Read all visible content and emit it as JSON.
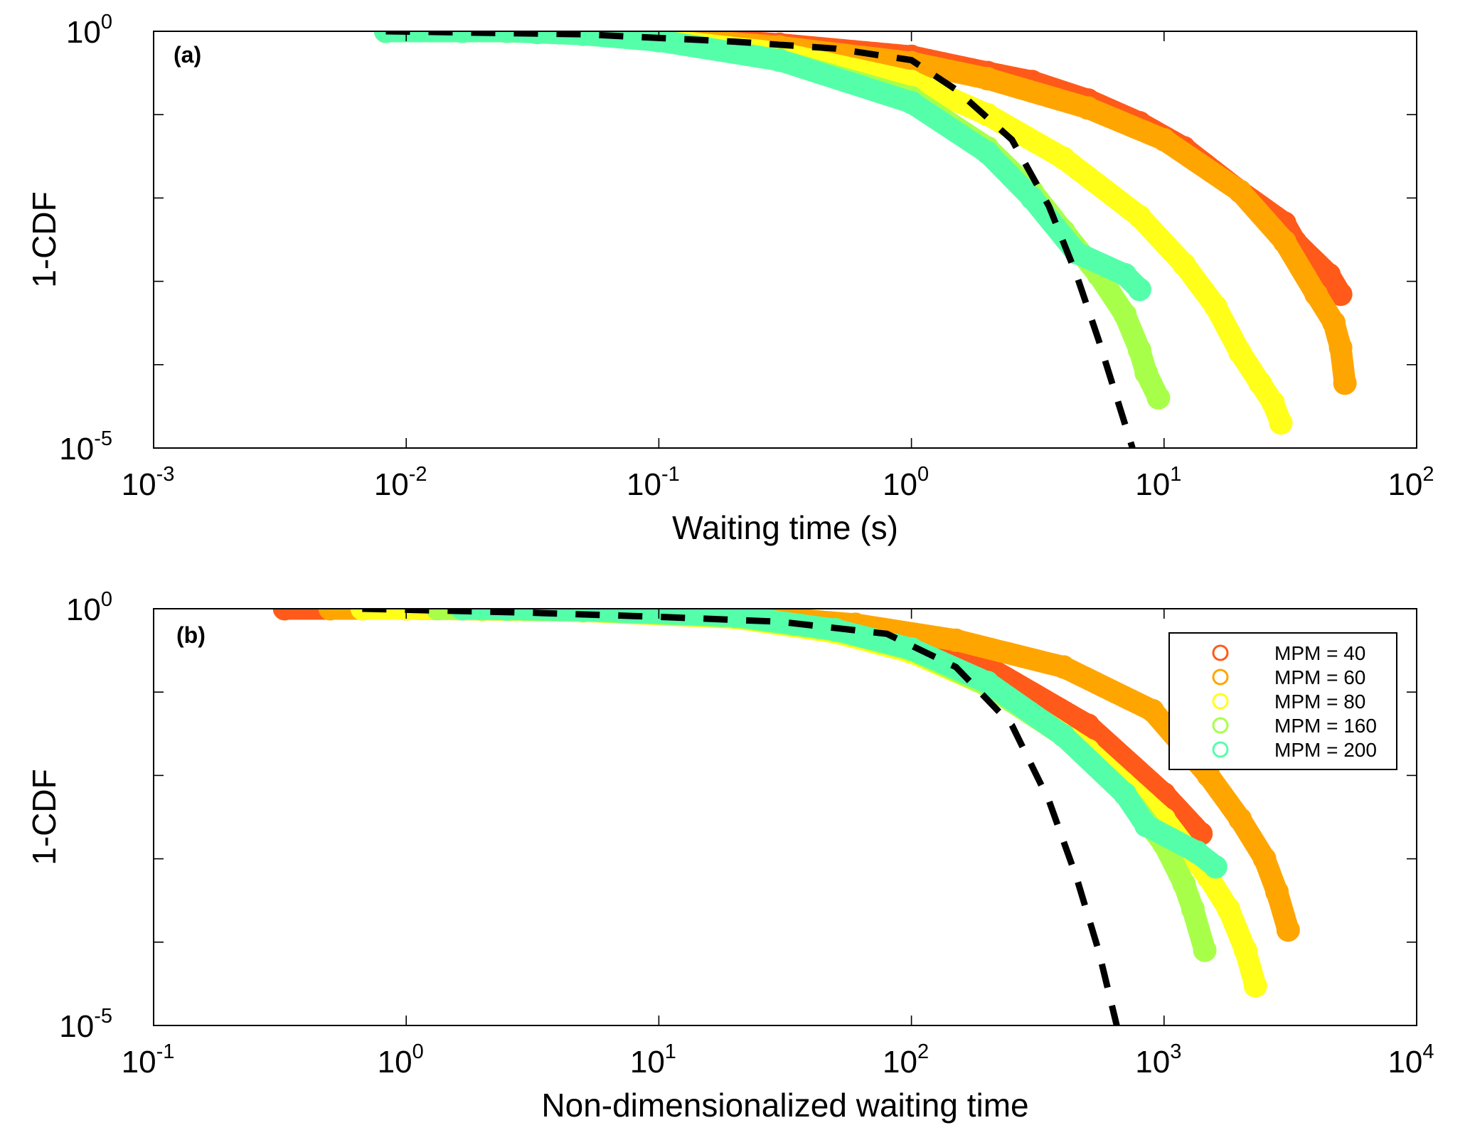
{
  "colors": {
    "MPM = 40": "#ff5a1a",
    "MPM = 60": "#ffa500",
    "MPM = 80": "#ffff1a",
    "MPM = 160": "#a8ff4a",
    "MPM = 200": "#55ffaa"
  },
  "chart_data": [
    {
      "type": "scatter",
      "panel_label": "(a)",
      "xlabel": "Waiting time (s)",
      "ylabel": "1-CDF",
      "xscale": "log",
      "yscale": "log",
      "xlim": [
        0.001,
        100
      ],
      "ylim": [
        1e-05,
        1
      ],
      "x_ticks": [
        {
          "base": "10",
          "exp": "-3"
        },
        {
          "base": "10",
          "exp": "-2"
        },
        {
          "base": "10",
          "exp": "-1"
        },
        {
          "base": "10",
          "exp": "0"
        },
        {
          "base": "10",
          "exp": "1"
        },
        {
          "base": "10",
          "exp": "2"
        }
      ],
      "y_ticks": [
        {
          "base": "10",
          "exp": "-5"
        },
        {
          "base": "10",
          "exp": "0"
        }
      ],
      "series": [
        {
          "name": "MPM = 40",
          "x": [
            0.0083,
            0.0167,
            0.025,
            0.033,
            0.05,
            0.1,
            0.3,
            1.0,
            2.0,
            3.0,
            5.0,
            8.0,
            12.0,
            20.0,
            30.0,
            33.0,
            45.0,
            50.0
          ],
          "y": [
            1.0,
            1.0,
            1.0,
            0.98,
            0.95,
            0.87,
            0.7,
            0.5,
            0.32,
            0.25,
            0.15,
            0.08,
            0.04,
            0.012,
            0.005,
            0.003,
            0.0012,
            0.0007
          ]
        },
        {
          "name": "MPM = 60",
          "x": [
            0.0083,
            0.0167,
            0.025,
            0.033,
            0.05,
            0.1,
            0.3,
            1.0,
            2.0,
            5.0,
            10.0,
            20.0,
            30.0,
            40.0,
            47.0,
            50.0,
            52.0
          ],
          "y": [
            1.0,
            1.0,
            1.0,
            0.98,
            0.95,
            0.85,
            0.65,
            0.42,
            0.27,
            0.12,
            0.05,
            0.012,
            0.003,
            0.0007,
            0.00032,
            0.00016,
            6e-05
          ]
        },
        {
          "name": "MPM = 80",
          "x": [
            0.0083,
            0.0167,
            0.025,
            0.033,
            0.05,
            0.1,
            0.3,
            1.0,
            2.0,
            4.0,
            8.0,
            12.0,
            16.0,
            20.0,
            24.0,
            27.0,
            29.0
          ],
          "y": [
            1.0,
            1.0,
            1.0,
            0.98,
            0.93,
            0.8,
            0.55,
            0.25,
            0.1,
            0.03,
            0.006,
            0.0016,
            0.0005,
            0.00014,
            6e-05,
            3.5e-05,
            2e-05
          ]
        },
        {
          "name": "MPM = 160",
          "x": [
            0.0083,
            0.0167,
            0.025,
            0.033,
            0.05,
            0.1,
            0.3,
            1.0,
            2.0,
            3.0,
            4.0,
            5.5,
            7.0,
            8.0,
            8.5,
            9.5
          ],
          "y": [
            1.0,
            1.0,
            1.0,
            0.97,
            0.92,
            0.78,
            0.45,
            0.16,
            0.04,
            0.012,
            0.004,
            0.0012,
            0.0004,
            0.00015,
            8e-05,
            4e-05
          ]
        },
        {
          "name": "MPM = 200",
          "x": [
            0.0083,
            0.0167,
            0.025,
            0.033,
            0.05,
            0.1,
            0.3,
            1.0,
            2.0,
            3.0,
            4.5,
            7.0,
            8.0
          ],
          "y": [
            1.0,
            1.0,
            1.0,
            0.97,
            0.92,
            0.77,
            0.45,
            0.14,
            0.035,
            0.01,
            0.0022,
            0.0012,
            0.0008
          ]
        }
      ],
      "fit": {
        "x": [
          0.0083,
          0.05,
          0.2,
          0.5,
          1.0,
          1.5,
          2.5,
          3.5,
          4.5,
          5.5,
          6.5,
          7.5
        ],
        "y": [
          1.0,
          0.92,
          0.75,
          0.62,
          0.45,
          0.2,
          0.05,
          0.008,
          0.0012,
          0.0002,
          4e-05,
          1e-05
        ]
      }
    },
    {
      "type": "scatter",
      "panel_label": "(b)",
      "xlabel": "Non-dimensionalized waiting time",
      "ylabel": "1-CDF",
      "xscale": "log",
      "yscale": "log",
      "xlim": [
        0.1,
        10000
      ],
      "ylim": [
        1e-05,
        1
      ],
      "x_ticks": [
        {
          "base": "10",
          "exp": "-1"
        },
        {
          "base": "10",
          "exp": "0"
        },
        {
          "base": "10",
          "exp": "1"
        },
        {
          "base": "10",
          "exp": "2"
        },
        {
          "base": "10",
          "exp": "3"
        },
        {
          "base": "10",
          "exp": "4"
        }
      ],
      "y_ticks": [
        {
          "base": "10",
          "exp": "-5"
        },
        {
          "base": "10",
          "exp": "0"
        }
      ],
      "legend": {
        "position": "top-right",
        "entries": [
          "MPM = 40",
          "MPM = 60",
          "MPM = 80",
          "MPM = 160",
          "MPM = 200"
        ]
      },
      "series": [
        {
          "name": "MPM = 40",
          "x": [
            0.33,
            0.67,
            1.0,
            2.0,
            5.0,
            20.0,
            50.0,
            100.0,
            200.0,
            500.0,
            1000.0,
            1400.0
          ],
          "y": [
            1.0,
            1.0,
            1.0,
            0.98,
            0.95,
            0.85,
            0.6,
            0.4,
            0.2,
            0.04,
            0.006,
            0.002
          ]
        },
        {
          "name": "MPM = 60",
          "x": [
            0.5,
            1.0,
            2.0,
            5.0,
            20.0,
            60.0,
            150.0,
            400.0,
            900.0,
            1500.0,
            2000.0,
            2500.0,
            2800.0,
            3100.0
          ],
          "y": [
            1.0,
            1.0,
            0.99,
            0.96,
            0.86,
            0.65,
            0.42,
            0.2,
            0.06,
            0.01,
            0.003,
            0.001,
            0.0004,
            0.00014
          ]
        },
        {
          "name": "MPM = 80",
          "x": [
            0.67,
            1.0,
            2.0,
            5.0,
            20.0,
            50.0,
            100.0,
            200.0,
            500.0,
            1000.0,
            1500.0,
            1800.0,
            2100.0,
            2300.0
          ],
          "y": [
            1.0,
            1.0,
            0.98,
            0.94,
            0.78,
            0.52,
            0.3,
            0.12,
            0.02,
            0.003,
            0.0006,
            0.00025,
            8e-05,
            3e-05
          ]
        },
        {
          "name": "MPM = 160",
          "x": [
            1.33,
            2.0,
            5.0,
            20.0,
            50.0,
            100.0,
            200.0,
            400.0,
            700.0,
            1000.0,
            1200.0,
            1300.0,
            1450.0
          ],
          "y": [
            1.0,
            0.99,
            0.95,
            0.8,
            0.55,
            0.32,
            0.12,
            0.03,
            0.006,
            0.0015,
            0.0005,
            0.00025,
            8e-05
          ]
        },
        {
          "name": "MPM = 200",
          "x": [
            1.67,
            2.5,
            5.0,
            20.0,
            50.0,
            100.0,
            200.0,
            400.0,
            700.0,
            850.0,
            1350.0,
            1600.0
          ],
          "y": [
            1.0,
            0.99,
            0.96,
            0.82,
            0.56,
            0.33,
            0.13,
            0.03,
            0.006,
            0.0025,
            0.0012,
            0.0008
          ]
        }
      ],
      "fit": {
        "x": [
          0.67,
          3.0,
          10.0,
          30.0,
          80.0,
          150.0,
          250.0,
          350.0,
          450.0,
          550.0,
          650.0
        ],
        "y": [
          1.0,
          0.9,
          0.8,
          0.7,
          0.5,
          0.2,
          0.04,
          0.005,
          0.0006,
          8e-05,
          1e-05
        ]
      }
    }
  ]
}
